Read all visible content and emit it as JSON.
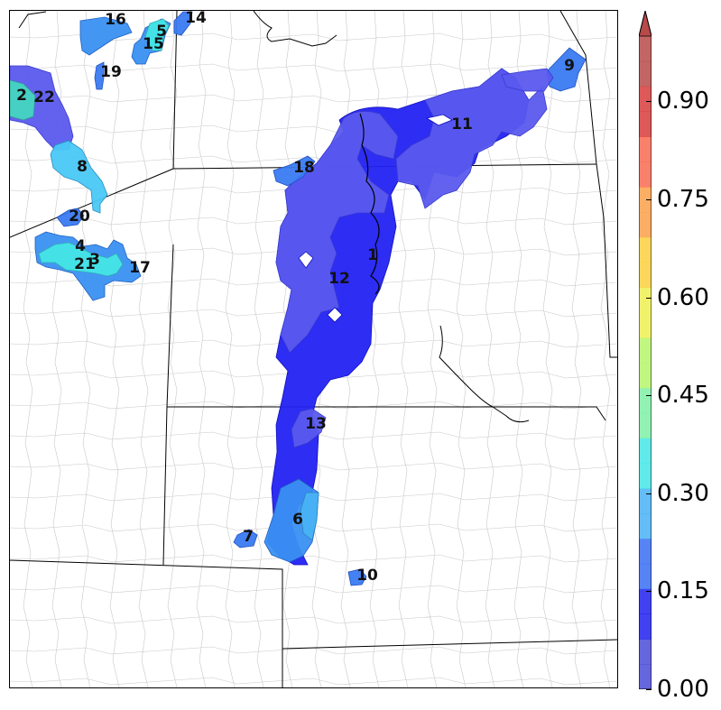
{
  "colorbar": {
    "ticks": [
      "0.00",
      "0.15",
      "0.30",
      "0.45",
      "0.60",
      "0.75",
      "0.90"
    ],
    "range": [
      0,
      1.0
    ],
    "colors": [
      "#4b4bd8",
      "#2020f0",
      "#3a6ef2",
      "#49b2f5",
      "#45e6e6",
      "#7ef0a6",
      "#b6f56a",
      "#eef052",
      "#fbd040",
      "#fca04a",
      "#f86a50",
      "#d83c3c",
      "#b84a4a"
    ]
  },
  "regions": [
    {
      "id": "1",
      "value": 0.08
    },
    {
      "id": "2",
      "value": 0.4
    },
    {
      "id": "22",
      "value": 0.12
    },
    {
      "id": "3",
      "value": 0.38
    },
    {
      "id": "4",
      "value": 0.33
    },
    {
      "id": "5",
      "value": 0.36
    },
    {
      "id": "6",
      "value": 0.22
    },
    {
      "id": "7",
      "value": 0.17
    },
    {
      "id": "8",
      "value": 0.28
    },
    {
      "id": "9",
      "value": 0.2
    },
    {
      "id": "10",
      "value": 0.14
    },
    {
      "id": "11",
      "value": 0.06
    },
    {
      "id": "12",
      "value": 0.06
    },
    {
      "id": "13",
      "value": 0.12
    },
    {
      "id": "14",
      "value": 0.18
    },
    {
      "id": "15",
      "value": 0.22
    },
    {
      "id": "16",
      "value": 0.24
    },
    {
      "id": "17",
      "value": 0.2
    },
    {
      "id": "18",
      "value": 0.14
    },
    {
      "id": "19",
      "value": 0.19
    },
    {
      "id": "20",
      "value": 0.13
    },
    {
      "id": "21",
      "value": 0.34
    }
  ]
}
